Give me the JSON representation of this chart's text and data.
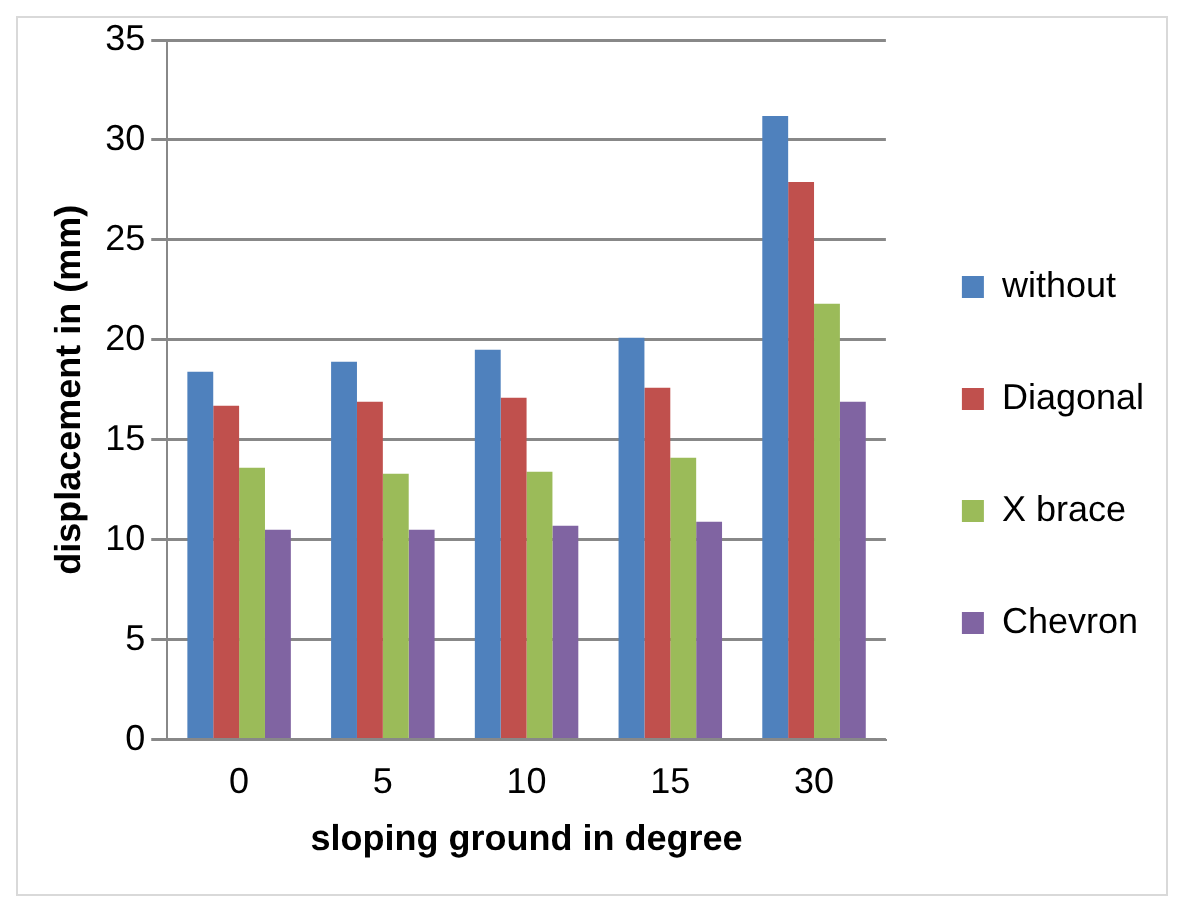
{
  "chart_data": {
    "type": "bar",
    "xlabel": "sloping ground in degree",
    "ylabel": "displacement in (mm)",
    "categories": [
      "0",
      "5",
      "10",
      "15",
      "30"
    ],
    "series": [
      {
        "name": "without",
        "color": "#4f81bd",
        "values": [
          18.4,
          18.9,
          19.5,
          20.1,
          31.2
        ]
      },
      {
        "name": "Diagonal",
        "color": "#c0504d",
        "values": [
          16.7,
          16.9,
          17.1,
          17.6,
          27.9
        ]
      },
      {
        "name": "X brace",
        "color": "#9bbb59",
        "values": [
          13.6,
          13.3,
          13.4,
          14.1,
          21.8
        ]
      },
      {
        "name": "Chevron",
        "color": "#8064a2",
        "values": [
          10.5,
          10.5,
          10.7,
          10.9,
          16.9
        ]
      }
    ],
    "ylim": [
      0,
      35
    ],
    "yticks": [
      0,
      5,
      10,
      15,
      20,
      25,
      30,
      35
    ],
    "grid": "y",
    "legend": "right"
  }
}
